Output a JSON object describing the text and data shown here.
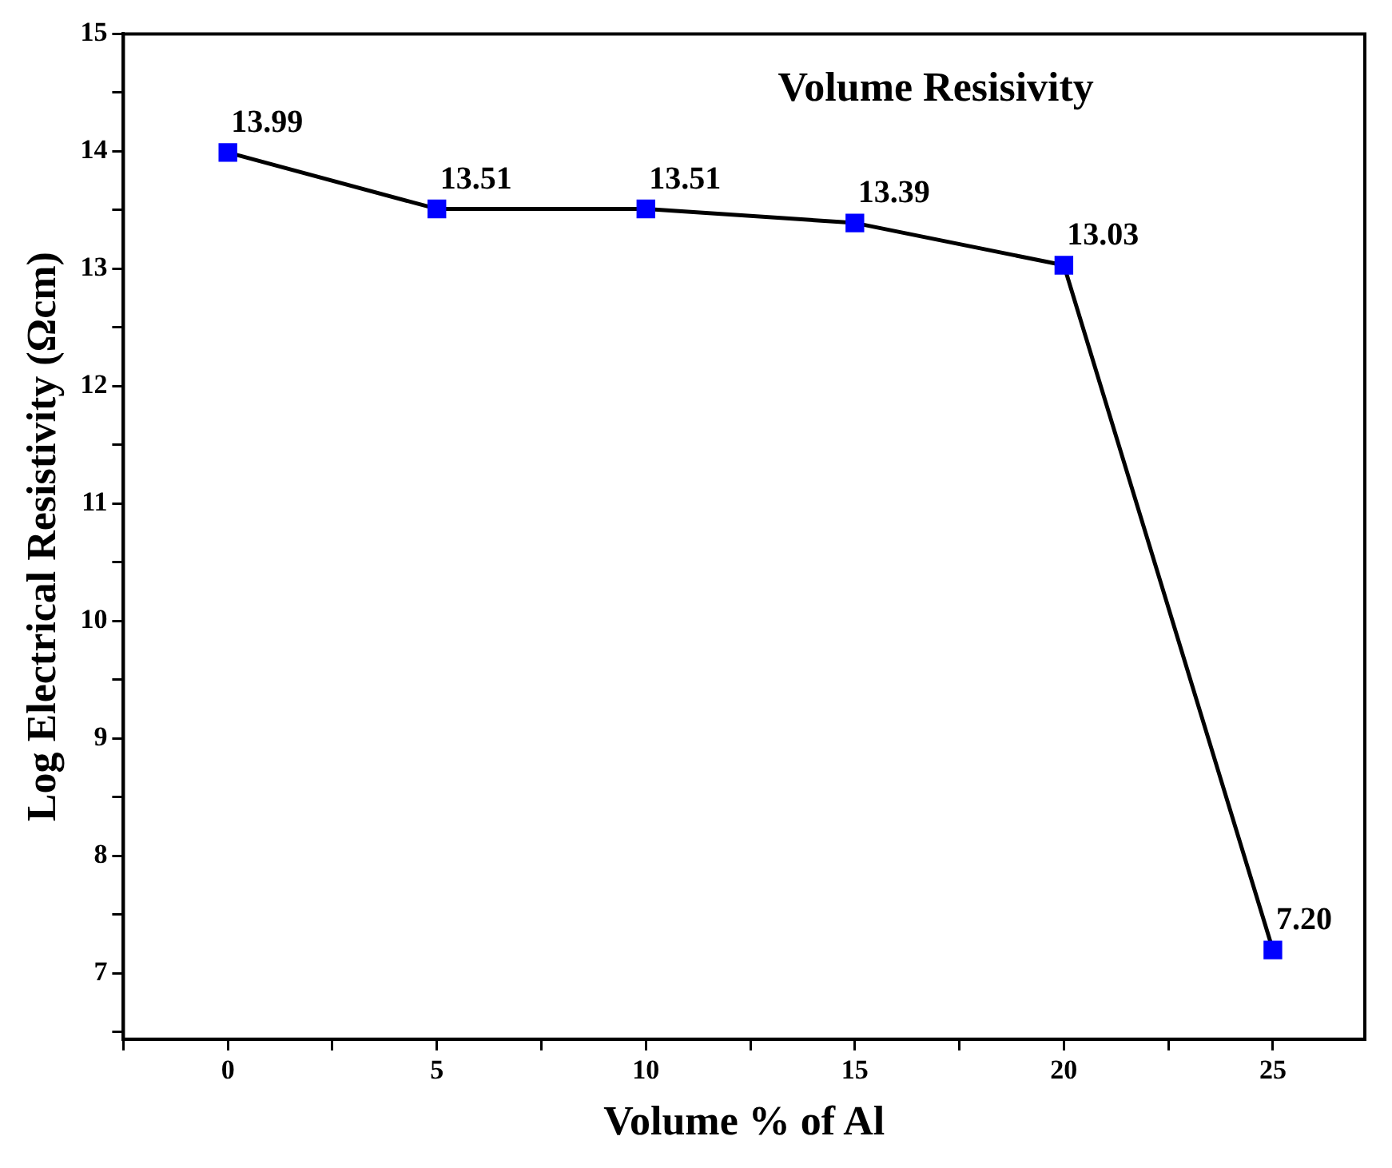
{
  "chart_data": {
    "type": "line",
    "title": "Volume Resisivity",
    "xlabel": "Volume % of Al",
    "ylabel": "Log Electrical Resistivity (Ωcm)",
    "x": [
      0,
      5,
      10,
      15,
      20,
      25
    ],
    "series": [
      {
        "color": "#0000ff",
        "values": [
          13.99,
          13.51,
          13.51,
          13.39,
          13.03,
          7.2
        ],
        "value_labels": [
          "13.99",
          "13.51",
          "13.51",
          "13.39",
          "13.03",
          "7.20"
        ]
      }
    ],
    "xlim": [
      -2.5,
      27.2
    ],
    "xticks": [
      {
        "value": -2.5,
        "label": null
      },
      0,
      {
        "value": 2.5,
        "label": null
      },
      5,
      {
        "value": 7.5,
        "label": null
      },
      10,
      {
        "value": 12.5,
        "label": null
      },
      15,
      {
        "value": 17.5,
        "label": null
      },
      20,
      {
        "value": 22.5,
        "label": null
      },
      25
    ],
    "ylim": [
      6.44,
      15
    ],
    "yticks": [
      {
        "value": 6.5,
        "label": null
      },
      7,
      {
        "value": 7.5,
        "label": null
      },
      8,
      {
        "value": 8.5,
        "label": null
      },
      9,
      {
        "value": 9.5,
        "label": null
      },
      10,
      {
        "value": 10.5,
        "label": null
      },
      11,
      {
        "value": 11.5,
        "label": null
      },
      12,
      {
        "value": 12.5,
        "label": null
      },
      13,
      {
        "value": 13.5,
        "label": null
      },
      14,
      {
        "value": 14.5,
        "label": null
      },
      15
    ],
    "grid": false,
    "legend": false,
    "marker": "square",
    "line_style": "solid"
  }
}
